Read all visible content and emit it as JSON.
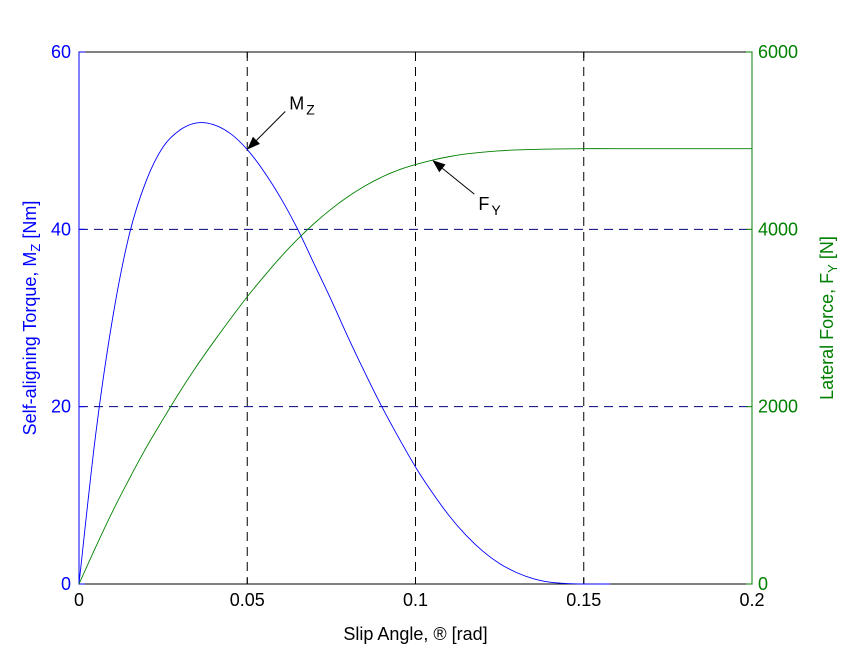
{
  "chart_data": {
    "type": "line",
    "xlabel": "Slip Angle, ® [rad]",
    "ylabel_left": {
      "main": "Self-aligning Torque, M",
      "sub": "Z",
      "tail": " [Nm]"
    },
    "ylabel_right": {
      "main": "Lateral Force, F",
      "sub": "Y",
      "tail": " [N]"
    },
    "xlim": [
      0,
      0.2
    ],
    "ylim_left": [
      0,
      60
    ],
    "ylim_right": [
      0,
      6000
    ],
    "x_ticks": [
      "0",
      "0.05",
      "0.1",
      "0.15",
      "0.2"
    ],
    "y_ticks_left": [
      "0",
      "20",
      "40",
      "60"
    ],
    "y_ticks_right": [
      "0",
      "2000",
      "4000",
      "6000"
    ],
    "grid": true,
    "series": [
      {
        "name": "M",
        "name_sub": "Z",
        "axis": "left",
        "color": "#0000ff",
        "x": [
          0,
          0.005,
          0.01,
          0.015,
          0.02,
          0.025,
          0.03,
          0.035,
          0.04,
          0.045,
          0.05,
          0.055,
          0.06,
          0.065,
          0.07,
          0.075,
          0.08,
          0.085,
          0.09,
          0.095,
          0.1,
          0.105,
          0.11,
          0.115,
          0.12,
          0.125,
          0.13,
          0.135,
          0.14,
          0.145,
          0.15,
          0.155,
          0.158
        ],
        "y": [
          0,
          17,
          30,
          39.5,
          45.5,
          49.3,
          51.2,
          52,
          51.8,
          50.8,
          49,
          46.5,
          43.5,
          40,
          36,
          32,
          27.8,
          23.8,
          20,
          16.5,
          13.2,
          10.3,
          7.7,
          5.5,
          3.7,
          2.3,
          1.3,
          0.6,
          0.2,
          0.05,
          0,
          0,
          0
        ]
      },
      {
        "name": "F",
        "name_sub": "Y",
        "axis": "right",
        "color": "#008000",
        "x": [
          0,
          0.005,
          0.01,
          0.015,
          0.02,
          0.025,
          0.03,
          0.035,
          0.04,
          0.045,
          0.05,
          0.055,
          0.06,
          0.065,
          0.07,
          0.075,
          0.08,
          0.085,
          0.09,
          0.095,
          0.1,
          0.105,
          0.11,
          0.115,
          0.12,
          0.125,
          0.13,
          0.14,
          0.15,
          0.16,
          0.18,
          0.2
        ],
        "y": [
          0,
          420,
          820,
          1190,
          1540,
          1860,
          2170,
          2460,
          2730,
          2990,
          3240,
          3470,
          3690,
          3890,
          4070,
          4230,
          4370,
          4490,
          4590,
          4670,
          4730,
          4780,
          4820,
          4850,
          4870,
          4885,
          4895,
          4905,
          4910,
          4910,
          4910,
          4910
        ]
      }
    ],
    "annotations": [
      {
        "text": "M",
        "sub": "Z",
        "series": "M",
        "x": 0.05
      },
      {
        "text": "F",
        "sub": "Y",
        "series": "F",
        "x": 0.105
      }
    ]
  }
}
